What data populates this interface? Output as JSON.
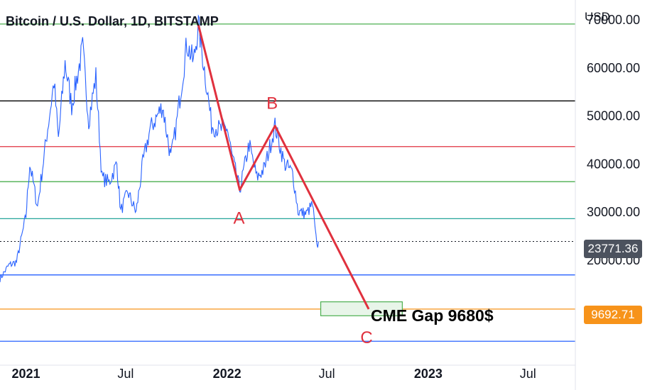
{
  "header": {
    "title": "Bitcoin / U.S. Dollar, 1D, BITSTAMP"
  },
  "axis": {
    "currency": "USD",
    "ticks": [
      "70000.00",
      "60000.00",
      "50000.00",
      "40000.00",
      "30000.00",
      "20000.00"
    ],
    "last_price": "23771.36",
    "target_price": "9692.71"
  },
  "time_axis": [
    "2021",
    "Jul",
    "2022",
    "Jul",
    "2023",
    "Jul"
  ],
  "annotations": {
    "wave_a": "A",
    "wave_b": "B",
    "wave_c": "C",
    "gap_label": "CME Gap 9680$"
  },
  "colors": {
    "candles": "#2962ff",
    "wave_line": "#e0313e",
    "last_price_bg": "#4c525e",
    "target_bg": "#f7931a",
    "gap_box": "#e8f5e9",
    "gap_border": "#4caf50"
  },
  "chart_data": {
    "type": "line",
    "title": "Bitcoin / U.S. Dollar, 1D, BITSTAMP",
    "ylabel": "USD",
    "ylim": [
      2000,
      74000
    ],
    "xlim": [
      "2020-11-15",
      "2023-09-25"
    ],
    "price_series": [
      [
        "2020-11-15",
        16000
      ],
      [
        "2020-12-01",
        18800
      ],
      [
        "2020-12-15",
        19500
      ],
      [
        "2021-01-01",
        29000
      ],
      [
        "2021-01-08",
        40000
      ],
      [
        "2021-01-22",
        31000
      ],
      [
        "2021-02-08",
        46000
      ],
      [
        "2021-02-21",
        57000
      ],
      [
        "2021-03-01",
        45000
      ],
      [
        "2021-03-13",
        61000
      ],
      [
        "2021-03-25",
        52000
      ],
      [
        "2021-04-14",
        64000
      ],
      [
        "2021-04-25",
        49000
      ],
      [
        "2021-05-08",
        58000
      ],
      [
        "2021-05-19",
        37000
      ],
      [
        "2021-06-01",
        36000
      ],
      [
        "2021-06-15",
        40000
      ],
      [
        "2021-06-22",
        30000
      ],
      [
        "2021-07-05",
        34000
      ],
      [
        "2021-07-20",
        29800
      ],
      [
        "2021-08-01",
        40000
      ],
      [
        "2021-08-14",
        47000
      ],
      [
        "2021-09-06",
        52000
      ],
      [
        "2021-09-21",
        41000
      ],
      [
        "2021-10-01",
        48000
      ],
      [
        "2021-10-20",
        65000
      ],
      [
        "2021-11-01",
        61000
      ],
      [
        "2021-11-10",
        68800
      ],
      [
        "2021-11-24",
        57000
      ],
      [
        "2021-12-04",
        48000
      ],
      [
        "2021-12-20",
        47000
      ],
      [
        "2022-01-01",
        47500
      ],
      [
        "2022-01-10",
        41500
      ],
      [
        "2022-01-24",
        34500
      ],
      [
        "2022-02-10",
        44000
      ],
      [
        "2022-02-24",
        37000
      ],
      [
        "2022-03-10",
        39000
      ],
      [
        "2022-03-29",
        47800
      ],
      [
        "2022-04-15",
        40000
      ],
      [
        "2022-04-30",
        38000
      ],
      [
        "2022-05-10",
        30000
      ],
      [
        "2022-05-25",
        29500
      ],
      [
        "2022-06-05",
        31500
      ],
      [
        "2022-06-13",
        22500
      ],
      [
        "2022-06-16",
        23771
      ]
    ],
    "wave_path": [
      {
        "x": "2021-11-10",
        "y": 68800
      },
      {
        "x": "2022-01-24",
        "y": 34500,
        "label": "A"
      },
      {
        "x": "2022-03-29",
        "y": 47800,
        "label": "B"
      },
      {
        "x": "2022-09-15",
        "y": 9680,
        "label": "C"
      }
    ],
    "horizontal_levels": [
      {
        "y": 69000,
        "color": "#4caf50"
      },
      {
        "y": 53000,
        "color": "#000000"
      },
      {
        "y": 43500,
        "color": "#e0313e"
      },
      {
        "y": 36200,
        "color": "#4caf50"
      },
      {
        "y": 28500,
        "color": "#26a69a"
      },
      {
        "y": 23771,
        "color": "#131722",
        "style": "dotted"
      },
      {
        "y": 16800,
        "color": "#2962ff"
      },
      {
        "y": 9692.71,
        "color": "#f7931a"
      },
      {
        "y": 3000,
        "color": "#2962ff"
      }
    ],
    "gap_zone": {
      "x0": "2022-06-20",
      "x1": "2022-11-15",
      "y0": 8300,
      "y1": 11200,
      "label": "CME Gap 9680$"
    },
    "last_price": 23771.36,
    "target_price": 9692.71
  }
}
